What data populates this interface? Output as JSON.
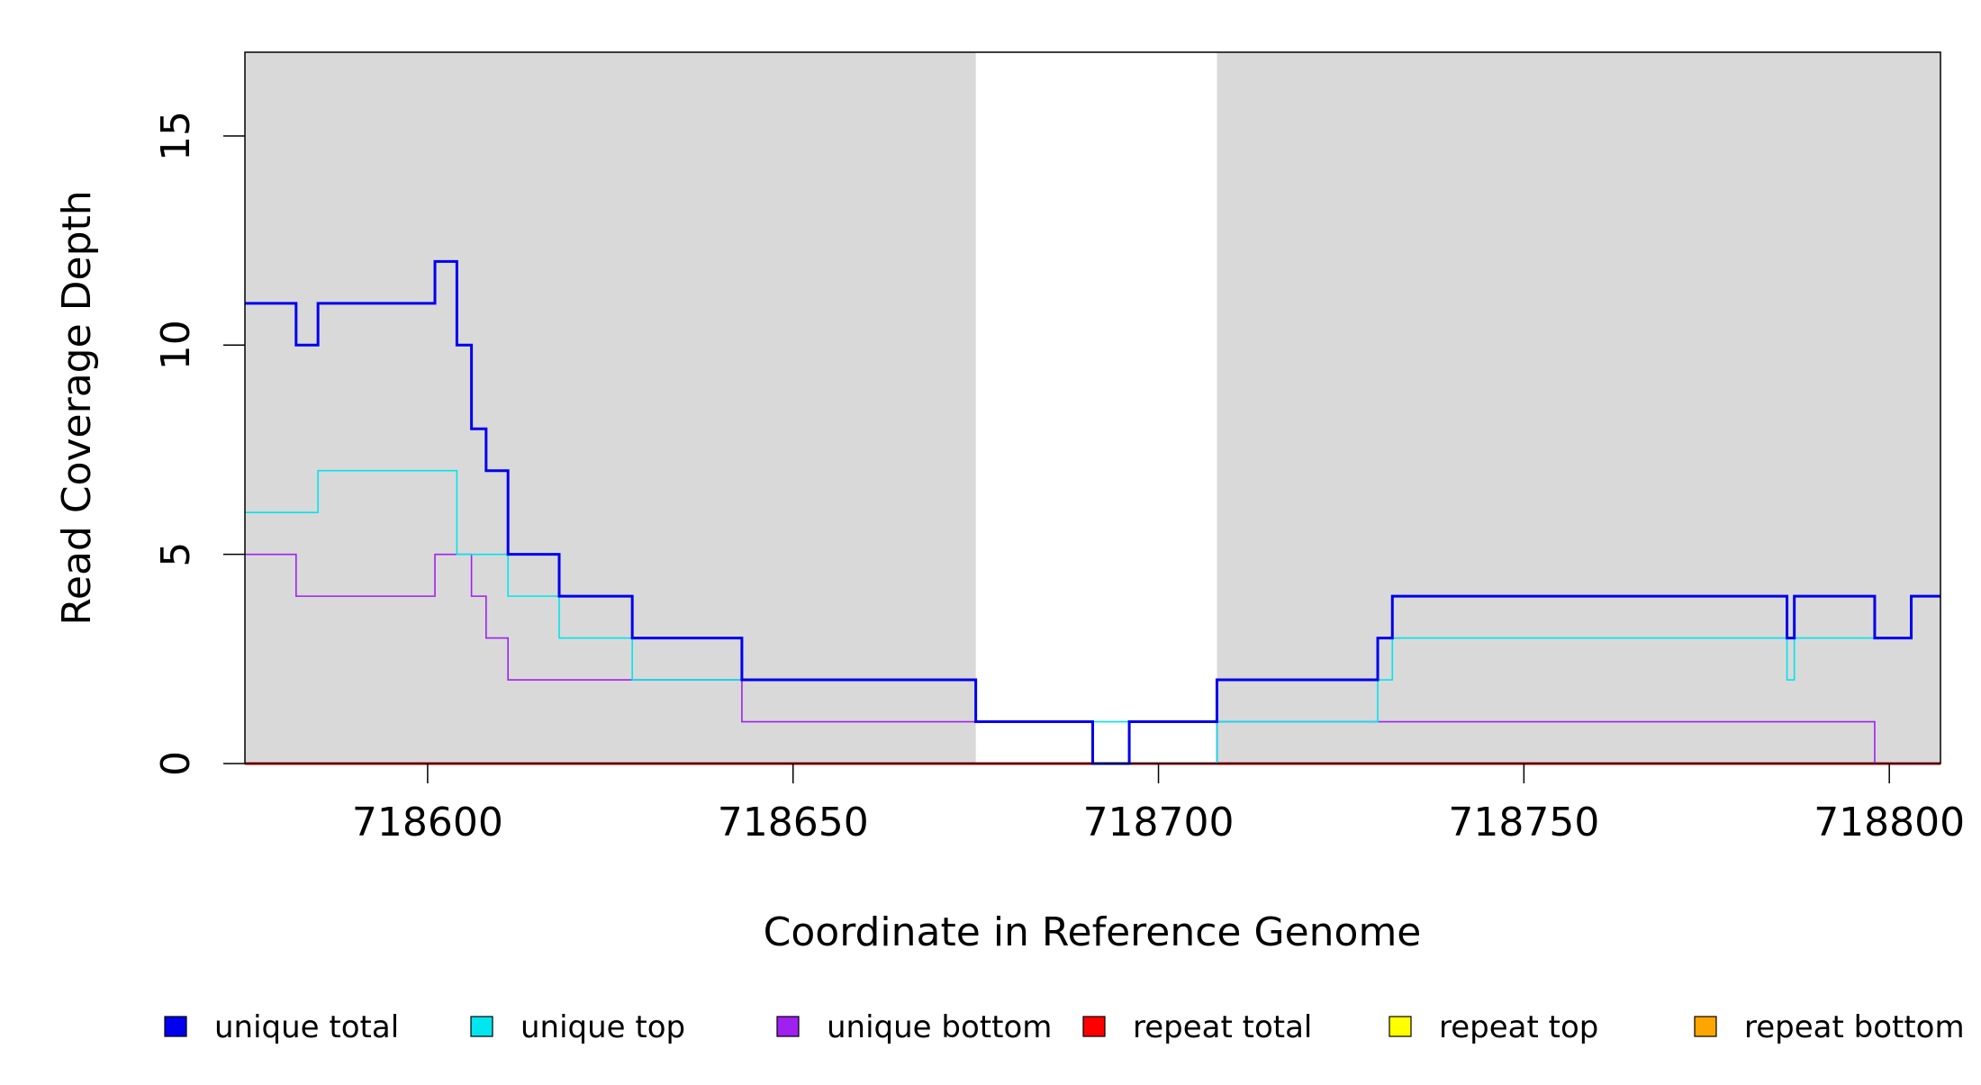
{
  "chart_data": {
    "type": "line",
    "xlabel": "Coordinate in Reference Genome",
    "ylabel": "Read Coverage Depth",
    "xlim": [
      718575,
      718807
    ],
    "ylim": [
      0,
      17
    ],
    "x_ticks": [
      718600,
      718650,
      718700,
      718750,
      718800
    ],
    "x_tick_labels": [
      "718600",
      "718650",
      "718700",
      "718750",
      "718800"
    ],
    "y_ticks": [
      0,
      5,
      10,
      15
    ],
    "y_tick_labels": [
      "0",
      "5",
      "10",
      "15"
    ],
    "background_color": "#d9d9d9",
    "highlight_region": [
      718675,
      718708
    ],
    "highlight_color": "#ffffff",
    "grid": false,
    "legend_position": "bottom",
    "series": [
      {
        "name": "unique total",
        "color": "#0000ee",
        "x": [
          718575,
          718582,
          718585,
          718601,
          718604,
          718606,
          718608,
          718611,
          718618,
          718628,
          718643,
          718675,
          718691,
          718696,
          718708,
          718730,
          718732,
          718786,
          718787,
          718798,
          718803,
          718807
        ],
        "y": [
          11,
          10,
          11,
          12,
          10,
          8,
          7,
          5,
          4,
          3,
          2,
          1,
          0,
          1,
          2,
          3,
          4,
          3,
          4,
          3,
          4,
          4
        ]
      },
      {
        "name": "unique top",
        "color": "#00e5ee",
        "x": [
          718575,
          718585,
          718604,
          718611,
          718618,
          718628,
          718675,
          718696,
          718708,
          718730,
          718732,
          718786,
          718787,
          718803,
          718807
        ],
        "y": [
          6,
          7,
          5,
          4,
          3,
          2,
          1,
          0,
          1,
          2,
          3,
          2,
          3,
          4,
          4
        ]
      },
      {
        "name": "unique bottom",
        "color": "#a020f0",
        "x": [
          718575,
          718582,
          718601,
          718606,
          718608,
          718611,
          718643,
          718691,
          718708,
          718798,
          718807
        ],
        "y": [
          5,
          4,
          5,
          4,
          3,
          2,
          1,
          0,
          1,
          0,
          0
        ]
      },
      {
        "name": "repeat total",
        "color": "#ff0000",
        "x": [
          718575,
          718807
        ],
        "y": [
          0,
          0
        ]
      },
      {
        "name": "repeat top",
        "color": "#ffff00",
        "x": [
          718575,
          718807
        ],
        "y": [
          0,
          0
        ]
      },
      {
        "name": "repeat bottom",
        "color": "#ffa500",
        "x": [
          718575,
          718807
        ],
        "y": [
          0,
          0
        ]
      }
    ]
  }
}
